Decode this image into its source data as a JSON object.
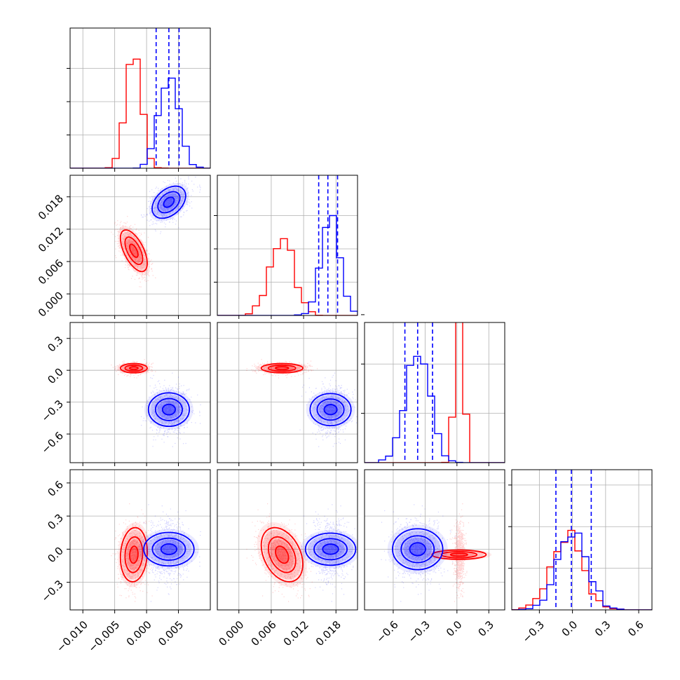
{
  "chart_data": {
    "type": "corner",
    "grid": true,
    "colors": {
      "red": "#ff0000",
      "blue": "#0000ff"
    },
    "parameters": [
      {
        "range": [
          -0.012,
          0.01
        ],
        "ticks": [
          -0.01,
          -0.005,
          0.0,
          0.005
        ],
        "tick_labels": [
          "−0.010",
          "−0.005",
          "0.000",
          "0.005"
        ]
      },
      {
        "range": [
          -0.004,
          0.022
        ],
        "ticks": [
          0.0,
          0.006,
          0.012,
          0.018
        ],
        "tick_labels": [
          "0.000",
          "0.006",
          "0.012",
          "0.018"
        ]
      },
      {
        "range": [
          -0.87,
          0.45
        ],
        "ticks": [
          -0.6,
          -0.3,
          0.0,
          0.3
        ],
        "tick_labels": [
          "−0.6",
          "−0.3",
          "0.0",
          "0.3"
        ]
      },
      {
        "range": [
          -0.55,
          0.72
        ],
        "ticks": [
          -0.3,
          0.0,
          0.3,
          0.6
        ],
        "tick_labels": [
          "−0.3",
          "0.0",
          "0.3",
          "0.6"
        ]
      }
    ],
    "series": [
      {
        "color": "red",
        "means": [
          -0.002,
          0.008,
          0.02,
          -0.05
        ],
        "sds": [
          0.0012,
          0.0022,
          0.025,
          0.14
        ],
        "rho": {
          "0-1": -0.6,
          "0-3": 0.1,
          "1-3": -0.35
        }
      },
      {
        "color": "blue",
        "means": [
          0.0035,
          0.017,
          -0.37,
          0.0
        ],
        "sds": [
          0.0015,
          0.0017,
          0.11,
          0.13
        ],
        "rho": {
          "0-1": 0.4
        }
      }
    ],
    "quantile_lines": {
      "color": "blue",
      "values": [
        [
          0.0015,
          0.0035,
          0.0051
        ],
        [
          0.0148,
          0.0165,
          0.0183
        ],
        [
          -0.49,
          -0.37,
          -0.23
        ],
        [
          -0.15,
          -0.01,
          0.17
        ]
      ]
    },
    "hist_max": [
      0.4,
      0.4,
      0.27,
      0.32
    ]
  }
}
